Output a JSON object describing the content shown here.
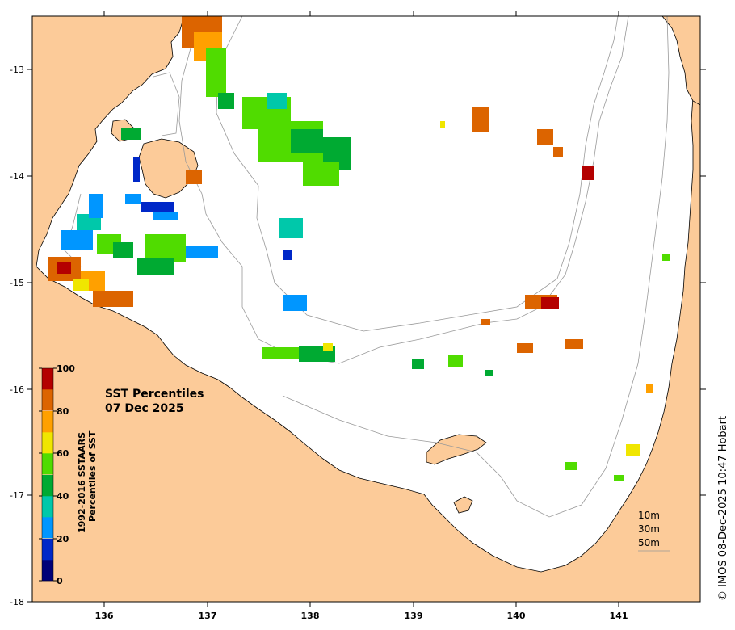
{
  "map": {
    "title_line1": "SST Percentiles",
    "title_line2": "07 Dec 2025",
    "credit": "© IMOS 08-Dec-2025 10:47 Hobart",
    "lat_ticks": [
      "-13",
      "-14",
      "-15",
      "-16",
      "-17",
      "-18"
    ],
    "lon_ticks": [
      "136",
      "137",
      "138",
      "139",
      "140",
      "141"
    ],
    "land_color": "#fccb99",
    "sea_color": "#ffffff"
  },
  "colorbar": {
    "title_line1": "1992-2016 SSTAARS",
    "title_line2": "Percentiles of SST",
    "labels": [
      "100",
      "80",
      "60",
      "40",
      "20",
      "0"
    ],
    "colors": [
      "#000078",
      "#0028c8",
      "#0096ff",
      "#00c8aa",
      "#00aa32",
      "#50dc00",
      "#f0e600",
      "#ffa000",
      "#dc6400",
      "#b40000"
    ]
  },
  "depth_legend": {
    "items": [
      "10m",
      "30m",
      "50m"
    ]
  }
}
